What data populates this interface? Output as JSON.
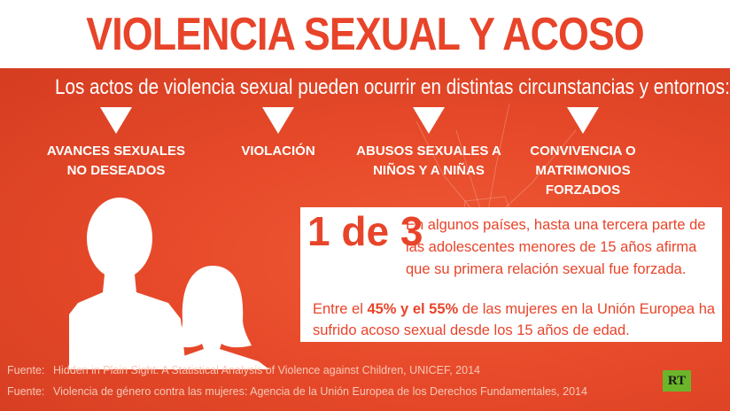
{
  "title": "VIOLENCIA SEXUAL Y ACOSO",
  "subtitle": "Los actos de violencia sexual pueden ocurrir en distintas circunstancias y entornos:",
  "categories": [
    {
      "label": "AVANCES SEXUALES\nNO DESEADOS"
    },
    {
      "label": "VIOLACIÓN"
    },
    {
      "label": "ABUSOS SEXUALES A\nNIÑOS Y A NIÑAS"
    },
    {
      "label": "CONVIVENCIA O\nMATRIMONIOS FORZADOS"
    }
  ],
  "stat": {
    "big": "1 de 3",
    "text1": "En algunos países, hasta una tercera parte de las adolescentes menores de 15 años afirma que su primera relación sexual fue forzada.",
    "text2_pre": "Entre el ",
    "text2_bold": "45% y el 55%",
    "text2_post": " de las mujeres en la Unión Europea ha sufrido acoso sexual desde los 15 años de edad."
  },
  "sources": [
    {
      "label": "Fuente:",
      "text": "Hidden in Plain Sight: A Statistical Analysis of Violence against Children, UNICEF, 2014"
    },
    {
      "label": "Fuente:",
      "text": "Violencia de género contra las mujeres: Agencia de la Unión Europea de los Derechos Fundamentales, 2014"
    }
  ],
  "logo": "RT",
  "colors": {
    "accent": "#e8442a",
    "background": "#e24a2a",
    "logo_green": "#6bb52a"
  }
}
